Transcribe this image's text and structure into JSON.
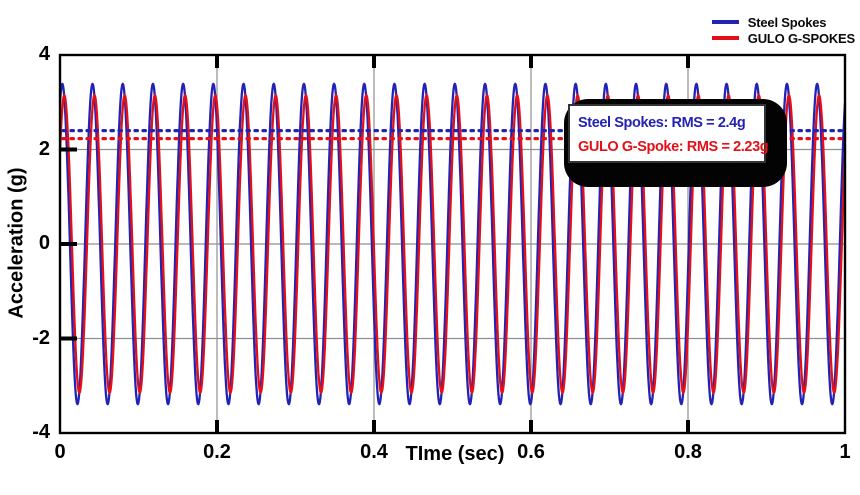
{
  "chart_data": {
    "type": "line",
    "title": "",
    "xlabel": "TIme (sec)",
    "ylabel": "Acceleration (g)",
    "xlim": [
      0,
      1
    ],
    "ylim": [
      -4,
      4
    ],
    "xticks": [
      0,
      0.2,
      0.4,
      0.6,
      0.8,
      1
    ],
    "xtick_labels": [
      "0",
      "0.2",
      "0.4",
      "0.6",
      "0.8",
      "1"
    ],
    "yticks": [
      -4,
      -2,
      0,
      2,
      4
    ],
    "ytick_labels": [
      "-4",
      "-2",
      "0",
      "2",
      "4"
    ],
    "grid": {
      "x_values": [
        0.2,
        0.4,
        0.6,
        0.8
      ],
      "y_values": [
        -2,
        0,
        2
      ],
      "color": "#8f8f8f"
    },
    "series": [
      {
        "name": "Steel Spokes",
        "color": "#2323b3",
        "waveform": "sine",
        "amplitude_g": 3.39,
        "frequency_hz": 26,
        "peak_time_s": 0.003,
        "rms_g": 2.4
      },
      {
        "name": "GULO G-SPOKES",
        "color": "#e41019",
        "waveform": "sine",
        "amplitude_g": 3.15,
        "frequency_hz": 26,
        "peak_time_s": 0.0055,
        "rms_g": 2.23
      }
    ],
    "rms_lines": [
      {
        "value_g": 2.4,
        "color": "#2323b3",
        "style": "dotted"
      },
      {
        "value_g": 2.23,
        "color": "#e41019",
        "style": "dotted"
      }
    ],
    "legend": {
      "position": "top-right",
      "entries": [
        {
          "label": "Steel Spokes",
          "color": "#2323b3"
        },
        {
          "label": "GULO G-SPOKES",
          "color": "#e41019"
        }
      ]
    },
    "annotation": {
      "lines": [
        {
          "text": "Steel Spokes: RMS = 2.4g",
          "color": "#2323b3"
        },
        {
          "text": "GULO G-Spoke: RMS = 2.23g",
          "color": "#e41019"
        }
      ]
    }
  }
}
